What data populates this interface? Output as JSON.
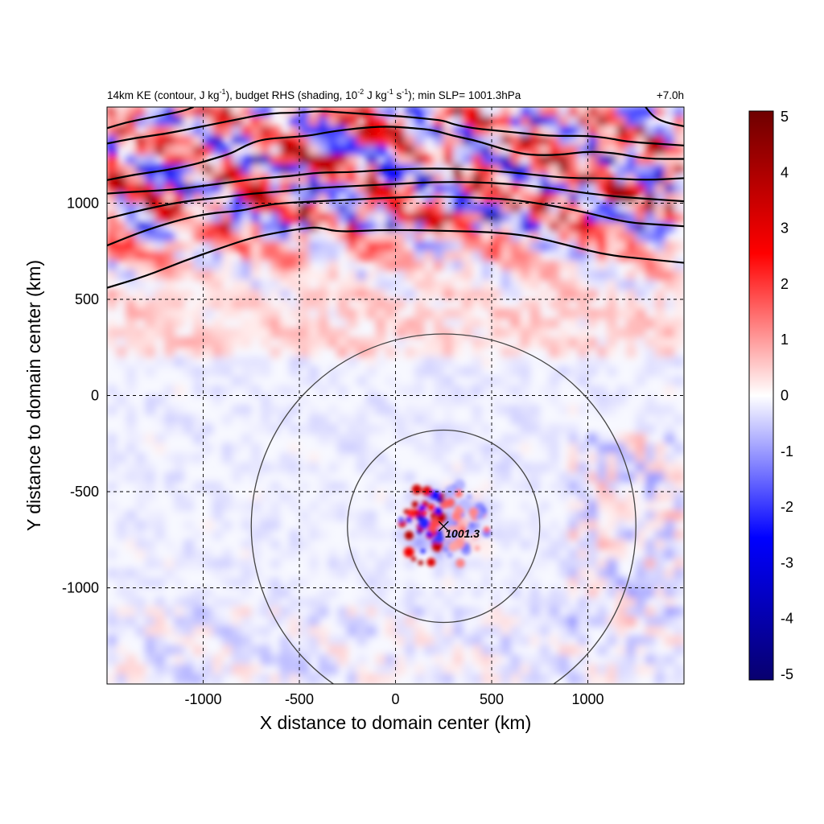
{
  "chart_data": {
    "type": "heatmap",
    "title": {
      "main": "14km KE (contour, J kg",
      "sup1": "-1",
      "mid1": "), budget RHS (shading, 10",
      "sup2": "-2",
      "mid2": " J kg",
      "sup3": "-1",
      "mid3": " s",
      "sup4": "-1",
      "end": "); min SLP= 1001.3hPa"
    },
    "time_label": "+7.0h",
    "xlabel": "X distance to domain center (km)",
    "ylabel": "Y distance to domain center (km)",
    "xlim": [
      -1500,
      1500
    ],
    "ylim": [
      -1500,
      1500
    ],
    "x_ticks": [
      -1000,
      -500,
      0,
      500,
      1000
    ],
    "x_tick_labels": [
      "-1000",
      "-500",
      "0",
      "500",
      "1000"
    ],
    "y_ticks": [
      -1000,
      -500,
      0,
      500,
      1000
    ],
    "y_tick_labels": [
      "-1000",
      "-500",
      "0",
      "500",
      "1000"
    ],
    "grid": "dashed",
    "colorbar": {
      "range": [
        -5,
        5
      ],
      "ticks": [
        5,
        4,
        3,
        2,
        1,
        0,
        -1,
        -2,
        -3,
        -4,
        -5
      ],
      "tick_labels": [
        "5",
        "4",
        "3",
        "2",
        "1",
        "0",
        "-1",
        "-2",
        "-3",
        "-4",
        "-5"
      ],
      "colors": [
        "#08006e",
        "#0000ff",
        "#ffffff",
        "#ff0000",
        "#6e0000"
      ]
    },
    "storm_center": {
      "x": 250,
      "y": -680,
      "label": "1001.3"
    },
    "range_rings_km": [
      500,
      1000
    ],
    "ke_contours": [
      [
        [
          -1500,
          560
        ],
        [
          -1300,
          620
        ],
        [
          -1100,
          700
        ],
        [
          -900,
          770
        ],
        [
          -750,
          820
        ],
        [
          -600,
          850
        ],
        [
          -470,
          870
        ],
        [
          -400,
          875
        ],
        [
          -300,
          850
        ],
        [
          -100,
          860
        ],
        [
          100,
          860
        ],
        [
          300,
          855
        ],
        [
          500,
          850
        ],
        [
          700,
          830
        ],
        [
          900,
          780
        ],
        [
          1100,
          730
        ],
        [
          1300,
          710
        ],
        [
          1500,
          690
        ]
      ],
      [
        [
          -1500,
          780
        ],
        [
          -1300,
          860
        ],
        [
          -1100,
          920
        ],
        [
          -950,
          950
        ],
        [
          -800,
          960
        ],
        [
          -700,
          985
        ],
        [
          -600,
          1000
        ],
        [
          -400,
          1010
        ],
        [
          -200,
          1020
        ],
        [
          0,
          1030
        ],
        [
          200,
          1035
        ],
        [
          400,
          1030
        ],
        [
          600,
          1020
        ],
        [
          800,
          990
        ],
        [
          1000,
          950
        ],
        [
          1200,
          900
        ],
        [
          1350,
          890
        ],
        [
          1500,
          880
        ]
      ],
      [
        [
          -1500,
          920
        ],
        [
          -1300,
          970
        ],
        [
          -1100,
          1010
        ],
        [
          -900,
          1030
        ],
        [
          -750,
          1050
        ],
        [
          -600,
          1060
        ],
        [
          -400,
          1080
        ],
        [
          -200,
          1090
        ],
        [
          0,
          1100
        ],
        [
          200,
          1110
        ],
        [
          400,
          1110
        ],
        [
          600,
          1100
        ],
        [
          800,
          1080
        ],
        [
          1000,
          1050
        ],
        [
          1200,
          1030
        ],
        [
          1350,
          1020
        ],
        [
          1500,
          1010
        ]
      ],
      [
        [
          -1500,
          1050
        ],
        [
          -1350,
          1060
        ],
        [
          -1150,
          1070
        ],
        [
          -1000,
          1090
        ],
        [
          -850,
          1110
        ],
        [
          -700,
          1130
        ],
        [
          -550,
          1140
        ],
        [
          -400,
          1160
        ],
        [
          -250,
          1160
        ],
        [
          -100,
          1170
        ],
        [
          100,
          1180
        ],
        [
          300,
          1180
        ],
        [
          500,
          1170
        ],
        [
          700,
          1150
        ],
        [
          900,
          1130
        ],
        [
          1100,
          1130
        ],
        [
          1300,
          1120
        ],
        [
          1500,
          1130
        ]
      ],
      [
        [
          -1500,
          1120
        ],
        [
          -1350,
          1150
        ],
        [
          -1200,
          1170
        ],
        [
          -1050,
          1200
        ],
        [
          -950,
          1230
        ],
        [
          -850,
          1260
        ],
        [
          -780,
          1300
        ],
        [
          -700,
          1330
        ],
        [
          -600,
          1340
        ],
        [
          -450,
          1350
        ],
        [
          -350,
          1370
        ],
        [
          -200,
          1390
        ],
        [
          -50,
          1400
        ],
        [
          100,
          1390
        ],
        [
          200,
          1380
        ],
        [
          300,
          1350
        ],
        [
          400,
          1330
        ],
        [
          500,
          1300
        ],
        [
          600,
          1270
        ],
        [
          700,
          1250
        ],
        [
          850,
          1250
        ],
        [
          1000,
          1270
        ],
        [
          1150,
          1260
        ],
        [
          1300,
          1230
        ],
        [
          1500,
          1230
        ]
      ],
      [
        [
          -1500,
          1310
        ],
        [
          -1350,
          1340
        ],
        [
          -1200,
          1360
        ],
        [
          -1050,
          1390
        ],
        [
          -900,
          1420
        ],
        [
          -800,
          1440
        ],
        [
          -700,
          1460
        ],
        [
          -600,
          1470
        ],
        [
          -500,
          1470
        ],
        [
          -400,
          1480
        ],
        [
          -250,
          1470
        ],
        [
          -100,
          1460
        ],
        [
          50,
          1450
        ],
        [
          150,
          1440
        ],
        [
          250,
          1430
        ],
        [
          300,
          1410
        ],
        [
          400,
          1390
        ],
        [
          500,
          1380
        ],
        [
          600,
          1370
        ],
        [
          700,
          1360
        ],
        [
          800,
          1350
        ],
        [
          900,
          1350
        ],
        [
          1000,
          1350
        ],
        [
          1100,
          1340
        ],
        [
          1200,
          1320
        ],
        [
          1350,
          1310
        ],
        [
          1500,
          1300
        ]
      ],
      [
        [
          -1500,
          1390
        ],
        [
          -1400,
          1420
        ],
        [
          -1300,
          1440
        ],
        [
          -1200,
          1460
        ],
        [
          -1100,
          1480
        ],
        [
          -1050,
          1500
        ]
      ],
      [
        [
          1300,
          1500
        ],
        [
          1340,
          1450
        ],
        [
          1400,
          1420
        ],
        [
          1500,
          1400
        ]
      ]
    ]
  }
}
